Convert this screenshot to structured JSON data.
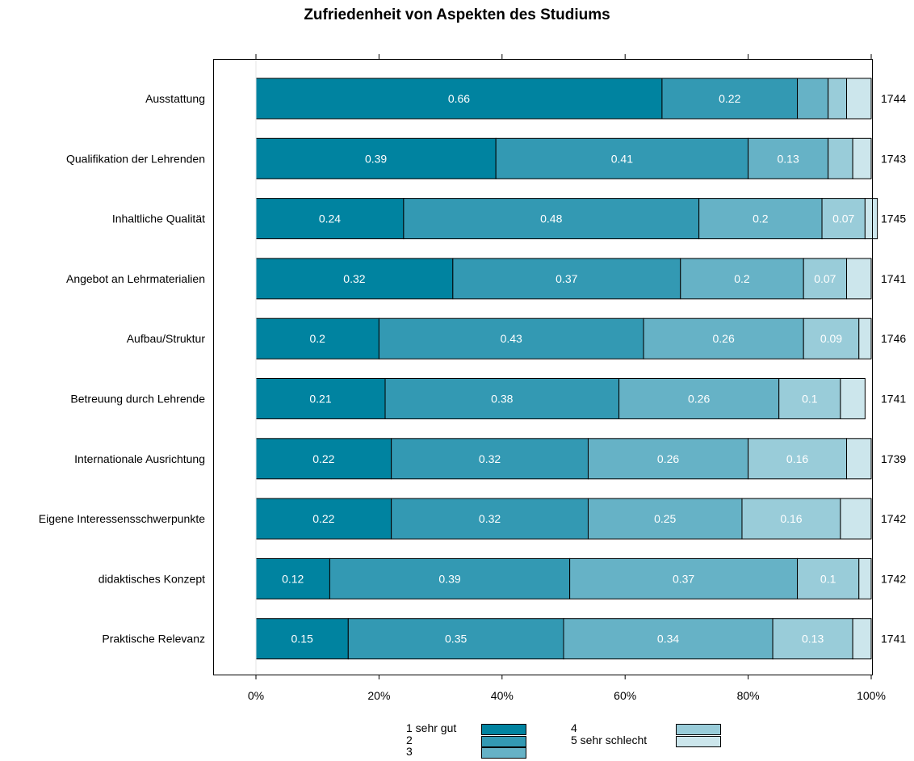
{
  "chart_data": {
    "type": "bar",
    "orientation": "horizontal",
    "stacked": true,
    "title": "Zufriedenheit von Aspekten des Studiums",
    "categories": [
      "Ausstattung",
      "Qualifikation der Lehrenden",
      "Inhaltliche Qualität",
      "Angebot an Lehrmaterialien",
      "Aufbau/Struktur",
      "Betreuung durch Lehrende",
      "Internationale Ausrichtung",
      "Eigene Interessensschwerpunkte",
      "didaktisches Konzept",
      "Praktische Relevanz"
    ],
    "counts": [
      "1744",
      "1743",
      "1745",
      "1741",
      "1746",
      "1741",
      "1739",
      "1742",
      "1742",
      "1741"
    ],
    "series": [
      {
        "name": "1 sehr gut",
        "color": "#0083A0",
        "values": [
          0.66,
          0.39,
          0.24,
          0.32,
          0.2,
          0.21,
          0.22,
          0.22,
          0.12,
          0.15
        ]
      },
      {
        "name": "2",
        "color": "#3399B3",
        "values": [
          0.22,
          0.41,
          0.48,
          0.37,
          0.43,
          0.38,
          0.32,
          0.32,
          0.39,
          0.35
        ]
      },
      {
        "name": "3",
        "color": "#66B2C6",
        "values": [
          0.05,
          0.13,
          0.2,
          0.2,
          0.26,
          0.26,
          0.26,
          0.25,
          0.37,
          0.34
        ]
      },
      {
        "name": "4",
        "color": "#99CCD9",
        "values": [
          0.03,
          0.04,
          0.07,
          0.07,
          0.09,
          0.1,
          0.16,
          0.16,
          0.1,
          0.13
        ]
      },
      {
        "name": "5 sehr schlecht",
        "color": "#CCE6EC",
        "values": [
          0.04,
          0.03,
          0.02,
          0.04,
          0.02,
          0.04,
          0.04,
          0.05,
          0.02,
          0.03
        ]
      }
    ],
    "data_labels": [
      [
        "0.66",
        "0.22",
        "",
        "",
        ""
      ],
      [
        "0.39",
        "0.41",
        "0.13",
        "",
        ""
      ],
      [
        "0.24",
        "0.48",
        "0.2",
        "0.07",
        ""
      ],
      [
        "0.32",
        "0.37",
        "0.2",
        "0.07",
        ""
      ],
      [
        "0.2",
        "0.43",
        "0.26",
        "0.09",
        ""
      ],
      [
        "0.21",
        "0.38",
        "0.26",
        "0.1",
        ""
      ],
      [
        "0.22",
        "0.32",
        "0.26",
        "0.16",
        ""
      ],
      [
        "0.22",
        "0.32",
        "0.25",
        "0.16",
        ""
      ],
      [
        "0.12",
        "0.39",
        "0.37",
        "0.1",
        ""
      ],
      [
        "0.15",
        "0.35",
        "0.34",
        "0.13",
        ""
      ]
    ],
    "x_ticks": [
      "0%",
      "20%",
      "40%",
      "60%",
      "80%",
      "100%"
    ],
    "x_tick_values": [
      0,
      0.2,
      0.4,
      0.6,
      0.8,
      1.0
    ],
    "xlim": [
      0,
      1
    ],
    "xlabel": "",
    "ylabel": "",
    "grid": false,
    "legend_position": "bottom"
  }
}
